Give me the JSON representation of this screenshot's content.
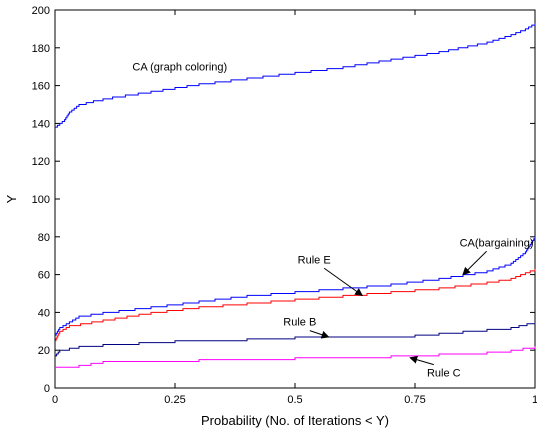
{
  "chart_data": {
    "type": "line",
    "title": "",
    "xlabel": "Probability (No. of Iterations < Y)",
    "ylabel": "Y",
    "xlim": [
      0,
      1
    ],
    "ylim": [
      0,
      200
    ],
    "x_ticks": [
      0,
      0.25,
      0.5,
      0.75,
      1
    ],
    "x_tick_labels": [
      "0",
      "0.25",
      "0.5",
      "0.75",
      "1"
    ],
    "y_ticks": [
      0,
      20,
      40,
      60,
      80,
      100,
      120,
      140,
      160,
      180,
      200
    ],
    "y_tick_labels": [
      "0",
      "20",
      "40",
      "60",
      "80",
      "100",
      "120",
      "140",
      "160",
      "180",
      "200"
    ],
    "grid": false,
    "series": [
      {
        "name": "CA (graph coloring)",
        "color": "#0000ff",
        "points": [
          [
            0,
            138
          ],
          [
            0.01,
            140
          ],
          [
            0.02,
            142
          ],
          [
            0.03,
            146
          ],
          [
            0.05,
            150
          ],
          [
            0.08,
            152
          ],
          [
            0.12,
            154
          ],
          [
            0.2,
            157
          ],
          [
            0.3,
            161
          ],
          [
            0.4,
            164
          ],
          [
            0.5,
            167
          ],
          [
            0.6,
            170
          ],
          [
            0.7,
            174
          ],
          [
            0.8,
            178
          ],
          [
            0.9,
            183
          ],
          [
            0.95,
            187
          ],
          [
            0.98,
            190
          ],
          [
            1.0,
            193
          ]
        ]
      },
      {
        "name": "CA(bargaining)",
        "color": "#0000ff",
        "points": [
          [
            0,
            28
          ],
          [
            0.01,
            32
          ],
          [
            0.03,
            35
          ],
          [
            0.05,
            38
          ],
          [
            0.1,
            40
          ],
          [
            0.2,
            43
          ],
          [
            0.3,
            46
          ],
          [
            0.4,
            49
          ],
          [
            0.5,
            51
          ],
          [
            0.6,
            53
          ],
          [
            0.7,
            55
          ],
          [
            0.8,
            58
          ],
          [
            0.9,
            62
          ],
          [
            0.95,
            66
          ],
          [
            0.98,
            72
          ],
          [
            1.0,
            80
          ]
        ]
      },
      {
        "name": "Rule E",
        "color": "#ff0000",
        "points": [
          [
            0,
            25
          ],
          [
            0.01,
            30
          ],
          [
            0.03,
            33
          ],
          [
            0.1,
            36
          ],
          [
            0.2,
            40
          ],
          [
            0.3,
            43
          ],
          [
            0.4,
            45
          ],
          [
            0.5,
            47
          ],
          [
            0.6,
            49
          ],
          [
            0.7,
            51
          ],
          [
            0.8,
            53
          ],
          [
            0.9,
            56
          ],
          [
            0.95,
            58
          ],
          [
            1.0,
            63
          ]
        ]
      },
      {
        "name": "Rule B",
        "color": "#000080",
        "points": [
          [
            0,
            17
          ],
          [
            0.01,
            20
          ],
          [
            0.05,
            22
          ],
          [
            0.1,
            23
          ],
          [
            0.25,
            25
          ],
          [
            0.4,
            26
          ],
          [
            0.5,
            27
          ],
          [
            0.6,
            27
          ],
          [
            0.75,
            28
          ],
          [
            0.85,
            30
          ],
          [
            0.95,
            32
          ],
          [
            1.0,
            35
          ]
        ]
      },
      {
        "name": "Rule C",
        "color": "#ff00ff",
        "points": [
          [
            0,
            11
          ],
          [
            0.05,
            12
          ],
          [
            0.1,
            14
          ],
          [
            0.3,
            15
          ],
          [
            0.5,
            16
          ],
          [
            0.7,
            17
          ],
          [
            0.8,
            18
          ],
          [
            0.9,
            19
          ],
          [
            0.95,
            20
          ],
          [
            1.0,
            22
          ]
        ]
      }
    ],
    "annotations": [
      {
        "label": "CA (graph coloring)",
        "series": "CA (graph coloring)",
        "anchor": [
          0.26,
          168
        ],
        "arrow_to": null
      },
      {
        "label": "CA(bargaining)",
        "series": "CA(bargaining)",
        "anchor": [
          0.92,
          75
        ],
        "arrow_to": [
          0.85,
          60
        ]
      },
      {
        "label": "Rule E",
        "series": "Rule E",
        "anchor": [
          0.54,
          66
        ],
        "arrow_to": [
          0.64,
          49
        ]
      },
      {
        "label": "Rule B",
        "series": "Rule B",
        "anchor": [
          0.51,
          33
        ],
        "arrow_to": [
          0.57,
          27
        ]
      },
      {
        "label": "Rule C",
        "series": "Rule C",
        "anchor": [
          0.81,
          6
        ],
        "arrow_to": [
          0.74,
          16
        ]
      }
    ]
  }
}
